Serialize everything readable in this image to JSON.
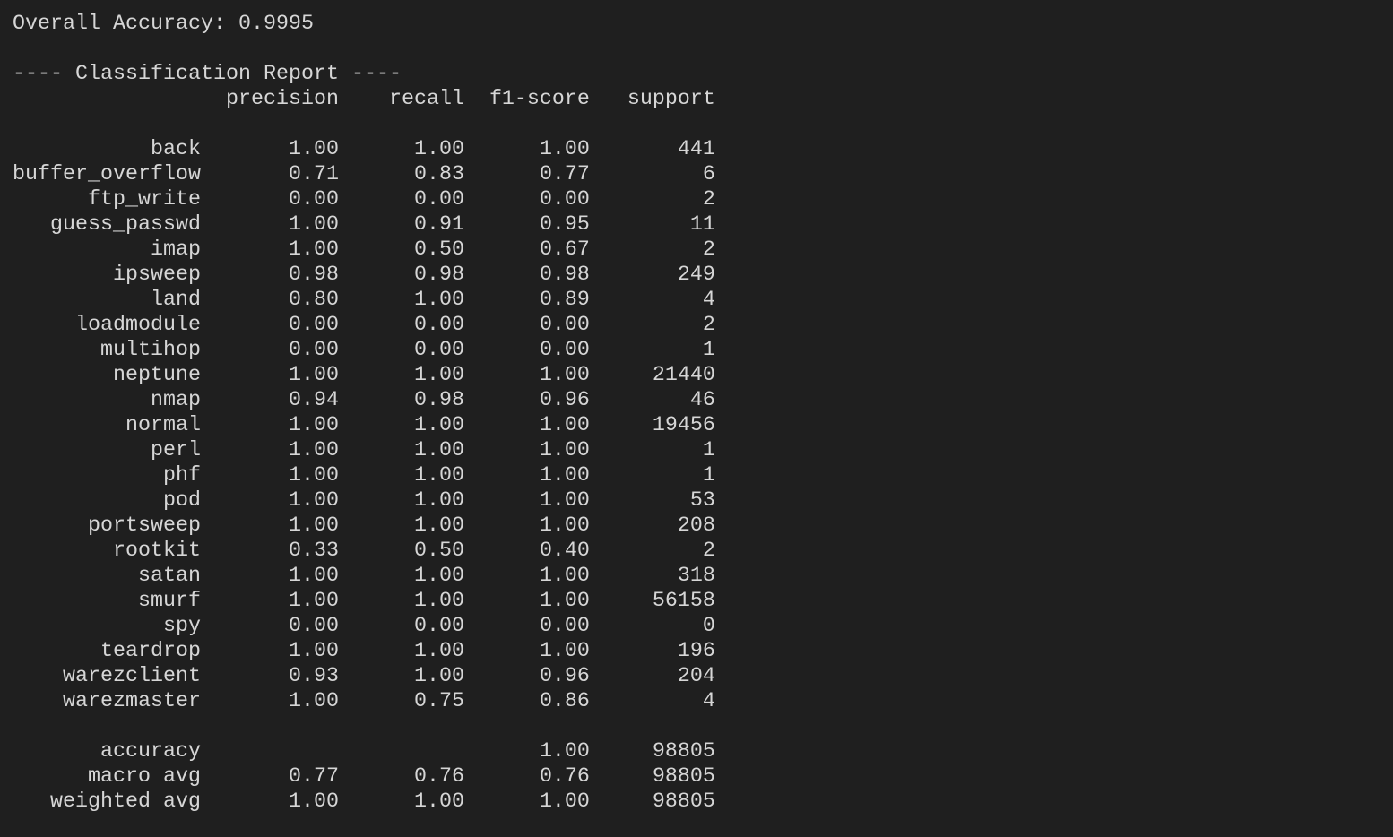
{
  "accuracy_line": "Overall Accuracy: 0.9995",
  "report_title": "---- Classification Report ----",
  "headers": [
    "",
    "precision",
    "recall",
    "f1-score",
    "support"
  ],
  "rows": [
    [
      "back",
      "1.00",
      "1.00",
      "1.00",
      "441"
    ],
    [
      "buffer_overflow",
      "0.71",
      "0.83",
      "0.77",
      "6"
    ],
    [
      "ftp_write",
      "0.00",
      "0.00",
      "0.00",
      "2"
    ],
    [
      "guess_passwd",
      "1.00",
      "0.91",
      "0.95",
      "11"
    ],
    [
      "imap",
      "1.00",
      "0.50",
      "0.67",
      "2"
    ],
    [
      "ipsweep",
      "0.98",
      "0.98",
      "0.98",
      "249"
    ],
    [
      "land",
      "0.80",
      "1.00",
      "0.89",
      "4"
    ],
    [
      "loadmodule",
      "0.00",
      "0.00",
      "0.00",
      "2"
    ],
    [
      "multihop",
      "0.00",
      "0.00",
      "0.00",
      "1"
    ],
    [
      "neptune",
      "1.00",
      "1.00",
      "1.00",
      "21440"
    ],
    [
      "nmap",
      "0.94",
      "0.98",
      "0.96",
      "46"
    ],
    [
      "normal",
      "1.00",
      "1.00",
      "1.00",
      "19456"
    ],
    [
      "perl",
      "1.00",
      "1.00",
      "1.00",
      "1"
    ],
    [
      "phf",
      "1.00",
      "1.00",
      "1.00",
      "1"
    ],
    [
      "pod",
      "1.00",
      "1.00",
      "1.00",
      "53"
    ],
    [
      "portsweep",
      "1.00",
      "1.00",
      "1.00",
      "208"
    ],
    [
      "rootkit",
      "0.33",
      "0.50",
      "0.40",
      "2"
    ],
    [
      "satan",
      "1.00",
      "1.00",
      "1.00",
      "318"
    ],
    [
      "smurf",
      "1.00",
      "1.00",
      "1.00",
      "56158"
    ],
    [
      "spy",
      "0.00",
      "0.00",
      "0.00",
      "0"
    ],
    [
      "teardrop",
      "1.00",
      "1.00",
      "1.00",
      "196"
    ],
    [
      "warezclient",
      "0.93",
      "1.00",
      "0.96",
      "204"
    ],
    [
      "warezmaster",
      "1.00",
      "0.75",
      "0.86",
      "4"
    ]
  ],
  "summary_rows": [
    [
      "accuracy",
      "",
      "",
      "1.00",
      "98805"
    ],
    [
      "macro avg",
      "0.77",
      "0.76",
      "0.76",
      "98805"
    ],
    [
      "weighted avg",
      "1.00",
      "1.00",
      "1.00",
      "98805"
    ]
  ]
}
